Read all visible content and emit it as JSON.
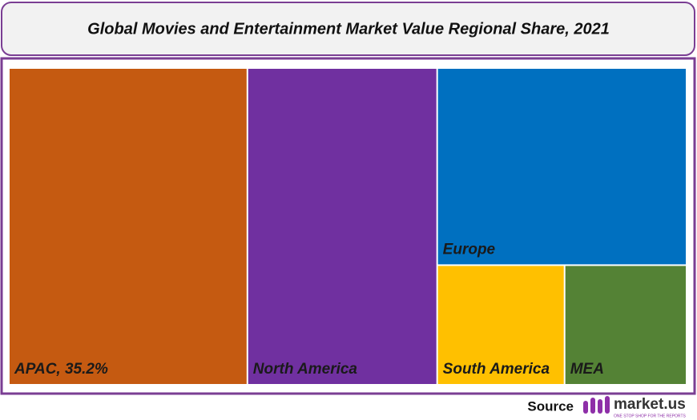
{
  "chart_data": {
    "type": "treemap",
    "title": "Global Movies and Entertainment Market Value Regional Share, 2021",
    "categories": [
      "APAC, 35.2%",
      "North America",
      "Europe",
      "South America",
      "MEA"
    ],
    "values": [
      35.2,
      28,
      22.9,
      7.1,
      6.8
    ],
    "colors": [
      "#c55a11",
      "#7030a0",
      "#0070c0",
      "#ffc000",
      "#548235"
    ],
    "source_label": "Source",
    "logo_text": "market.us",
    "logo_tagline": "ONE STOP SHOP FOR THE REPORTS"
  }
}
